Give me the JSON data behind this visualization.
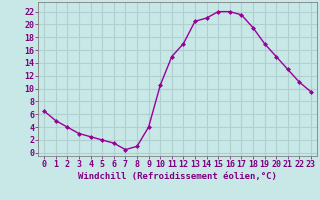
{
  "x": [
    0,
    1,
    2,
    3,
    4,
    5,
    6,
    7,
    8,
    9,
    10,
    11,
    12,
    13,
    14,
    15,
    16,
    17,
    18,
    19,
    20,
    21,
    22,
    23
  ],
  "y": [
    6.5,
    5.0,
    4.0,
    3.0,
    2.5,
    2.0,
    1.5,
    0.5,
    1.0,
    4.0,
    10.5,
    15.0,
    17.0,
    20.5,
    21.0,
    22.0,
    22.0,
    21.5,
    19.5,
    17.0,
    15.0,
    13.0,
    11.0,
    9.5
  ],
  "line_color": "#990099",
  "marker": "D",
  "marker_size": 2.0,
  "bg_color": "#c8e8e8",
  "grid_color": "#b0d0d0",
  "xlabel": "Windchill (Refroidissement éolien,°C)",
  "xlabel_color": "#800080",
  "xlabel_fontsize": 6.5,
  "xtick_labels": [
    "0",
    "1",
    "2",
    "3",
    "4",
    "5",
    "6",
    "7",
    "8",
    "9",
    "10",
    "11",
    "12",
    "13",
    "14",
    "15",
    "16",
    "17",
    "18",
    "19",
    "20",
    "21",
    "22",
    "23"
  ],
  "ytick_vals": [
    0,
    2,
    4,
    6,
    8,
    10,
    12,
    14,
    16,
    18,
    20,
    22
  ],
  "ylim": [
    -0.5,
    23.5
  ],
  "xlim": [
    -0.5,
    23.5
  ],
  "tick_color": "#800080",
  "tick_fontsize": 6.0,
  "axis_color": "#808080",
  "line_width": 1.0
}
